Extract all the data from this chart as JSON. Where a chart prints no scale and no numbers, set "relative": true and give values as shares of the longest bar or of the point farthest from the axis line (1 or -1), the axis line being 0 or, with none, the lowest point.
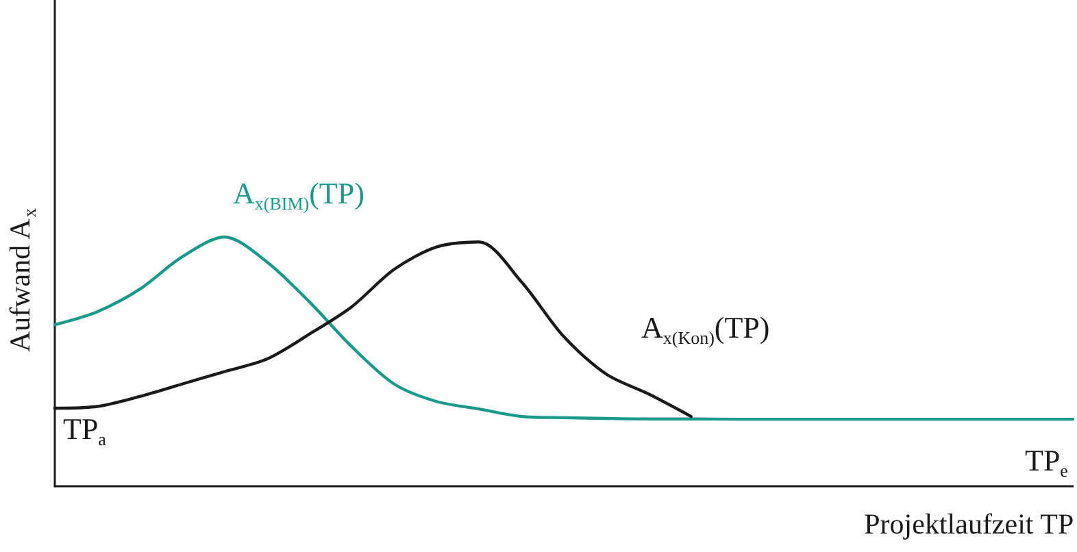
{
  "chart_data": {
    "type": "line",
    "relative": true,
    "xlabel": "Projektlaufzeit TP",
    "ylabel": "Aufwand A$_{x}$",
    "categories": [
      null,
      null,
      null,
      null,
      null,
      null,
      null,
      null,
      null,
      null,
      null,
      null,
      null,
      null,
      null,
      null,
      null,
      null,
      null,
      null,
      null,
      null,
      null,
      null,
      null
    ],
    "series": [
      {
        "name": "A$_{x(BIM)}$(TP)",
        "color": "#1a9a8a",
        "values": [
          0.648,
          0.7,
          0.79,
          0.92,
          1,
          0.9,
          0.74,
          0.56,
          0.41,
          0.34,
          0.31,
          0.28,
          0.275,
          0.272,
          0.27,
          0.27,
          0.269,
          0.269,
          0.269,
          0.269,
          0.269,
          0.269,
          0.269,
          0.269,
          0.269
        ]
      },
      {
        "name": "A$_{x(Kon)}$(TP)",
        "color": "#1a1a1a",
        "values": [
          0.313,
          0.32,
          0.36,
          0.41,
          0.46,
          0.51,
          0.61,
          0.72,
          0.87,
          0.96,
          0.98,
          0.82,
          0.6,
          0.45,
          0.37,
          0.28,
          null,
          null,
          null,
          null,
          null,
          null,
          null,
          null,
          null
        ]
      }
    ],
    "annotations": [
      "TP$_{a}$",
      "TP$_{e}$"
    ],
    "grid": false,
    "marker": "none",
    "line_style": "solid"
  }
}
